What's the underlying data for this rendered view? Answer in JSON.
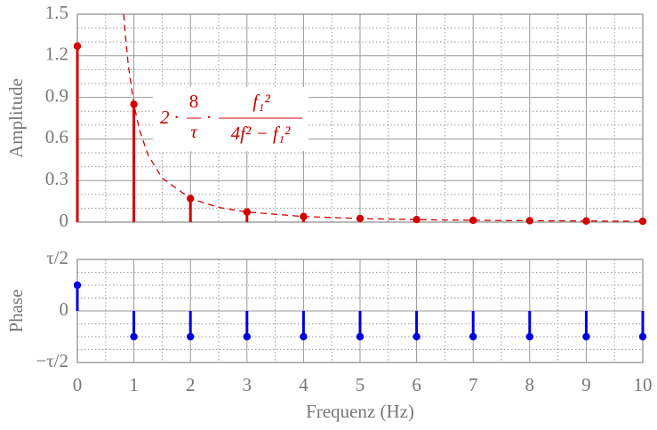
{
  "chart_data": [
    {
      "type": "stem",
      "ylabel": "Amplitude",
      "color": "#d40000",
      "x": [
        0,
        1,
        2,
        3,
        4,
        5,
        6,
        7,
        8,
        9,
        10
      ],
      "values": [
        1.27,
        0.85,
        0.17,
        0.073,
        0.04,
        0.026,
        0.018,
        0.013,
        0.01,
        0.008,
        0.006
      ],
      "curve": {
        "x": [
          0.82,
          0.85,
          0.9,
          1,
          1.1,
          1.25,
          1.5,
          2,
          2.5,
          3,
          4,
          5,
          6,
          7,
          8,
          9,
          10
        ],
        "values": [
          1.5,
          1.347,
          1.137,
          0.849,
          0.663,
          0.485,
          0.318,
          0.17,
          0.106,
          0.073,
          0.04,
          0.026,
          0.018,
          0.013,
          0.01,
          0.008,
          0.006
        ],
        "style": "dashed"
      },
      "annotation": {
        "lead": "2 ·",
        "frac1_num": "8",
        "frac1_den": "τ",
        "mid": "·",
        "frac2_num": "f₁²",
        "frac2_den": "4f² − f₁²"
      },
      "xlim": [
        0,
        10
      ],
      "xticks": [
        0,
        1,
        2,
        3,
        4,
        5,
        6,
        7,
        8,
        9,
        10
      ],
      "ylim": [
        0,
        1.5
      ],
      "yticks": [
        0,
        0.3,
        0.6,
        0.9,
        1.2,
        1.5
      ],
      "grid": true
    },
    {
      "type": "stem",
      "ylabel": "Phase",
      "xlabel": "Frequenz (Hz)",
      "color": "#0000dd",
      "x": [
        0,
        1,
        2,
        3,
        4,
        5,
        6,
        7,
        8,
        9,
        10
      ],
      "values": [
        1.5708,
        -1.5708,
        -1.5708,
        -1.5708,
        -1.5708,
        -1.5708,
        -1.5708,
        -1.5708,
        -1.5708,
        -1.5708,
        -1.5708
      ],
      "xlim": [
        0,
        10
      ],
      "xticks": [
        0,
        1,
        2,
        3,
        4,
        5,
        6,
        7,
        8,
        9,
        10
      ],
      "ylim": [
        -3.1416,
        3.1416
      ],
      "yticks": [
        {
          "value": -3.1416,
          "label": "−τ/2"
        },
        0,
        {
          "value": 3.1416,
          "label": "τ/2"
        }
      ],
      "grid": true
    }
  ]
}
